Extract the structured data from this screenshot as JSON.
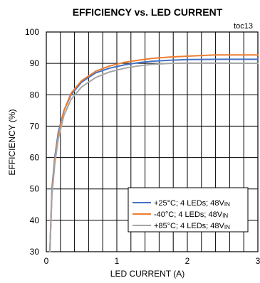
{
  "chart_data": {
    "type": "line",
    "title": "EFFICIENCY vs. LED CURRENT",
    "tag": "toc13",
    "xlabel": "LED CURRENT  (A)",
    "ylabel": "EFFICIENCY (%)",
    "xlim": [
      0,
      3
    ],
    "ylim": [
      30,
      100
    ],
    "xticks": [
      "0",
      "1",
      "2",
      "3"
    ],
    "yticks": [
      "30",
      "40",
      "50",
      "60",
      "70",
      "80",
      "90",
      "100"
    ],
    "grid": true,
    "legend_position": "bottom-right",
    "series": [
      {
        "name": "+25°C; 4 LEDs; 48V",
        "subscript": "IN",
        "color": "#4472C4",
        "x": [
          0.05,
          0.08,
          0.12,
          0.17,
          0.25,
          0.35,
          0.5,
          0.7,
          0.9,
          1.1,
          1.3,
          1.5,
          1.75,
          2.0,
          2.5,
          3.0
        ],
        "y": [
          30,
          50,
          60,
          68,
          75,
          80,
          84,
          87,
          88.5,
          89.5,
          90.2,
          90.7,
          91.0,
          91.2,
          91.3,
          91.3
        ]
      },
      {
        "name": "-40°C; 4 LEDs; 48V",
        "subscript": "IN",
        "color": "#ED7D31",
        "x": [
          0.05,
          0.08,
          0.12,
          0.17,
          0.25,
          0.35,
          0.5,
          0.7,
          0.9,
          1.1,
          1.3,
          1.5,
          1.75,
          2.0,
          2.4,
          3.0
        ],
        "y": [
          30,
          49,
          59,
          67,
          75,
          80.5,
          84.5,
          87.5,
          89.2,
          90.3,
          91.0,
          91.6,
          92.0,
          92.3,
          92.7,
          92.7
        ]
      },
      {
        "name": "+85°C; 4 LEDs; 48V",
        "subscript": "IN",
        "color": "#A5A5A5",
        "x": [
          0.05,
          0.08,
          0.12,
          0.17,
          0.25,
          0.35,
          0.5,
          0.7,
          0.9,
          1.1,
          1.3,
          1.5,
          1.75,
          2.0,
          2.5,
          3.0
        ],
        "y": [
          30,
          48,
          58,
          66,
          73.5,
          78.5,
          82.5,
          85.5,
          87.3,
          88.4,
          89.2,
          89.7,
          90.0,
          90.1,
          90.1,
          90.0
        ]
      }
    ]
  }
}
